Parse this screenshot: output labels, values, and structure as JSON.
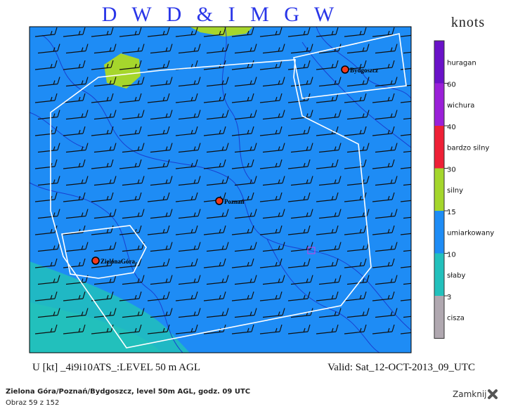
{
  "map": {
    "title": "D W D & I M G W",
    "legend": {
      "unit": "knots",
      "bands": [
        "huragan",
        "wichura",
        "bardzo silny",
        "silny",
        "umiarkowany",
        "słaby",
        "cisza"
      ],
      "thresholds": [
        "60",
        "40",
        "30",
        "15",
        "10",
        "3"
      ]
    },
    "cities": [
      "Bydgoszcz",
      "Poznań",
      "ZielonaGóra"
    ],
    "footer_left": "U [kt] _4i9i10ATS_:LEVEL 50 m AGL",
    "footer_right": "Valid: Sat_12-OCT-2013_09_UTC"
  },
  "caption": {
    "title": "Zielona Góra/Poznań/Bydgoszcz, level 50m AGL, godz. 09 UTC",
    "counter": "Obraz 59 z 152",
    "close": "Zamknij"
  }
}
